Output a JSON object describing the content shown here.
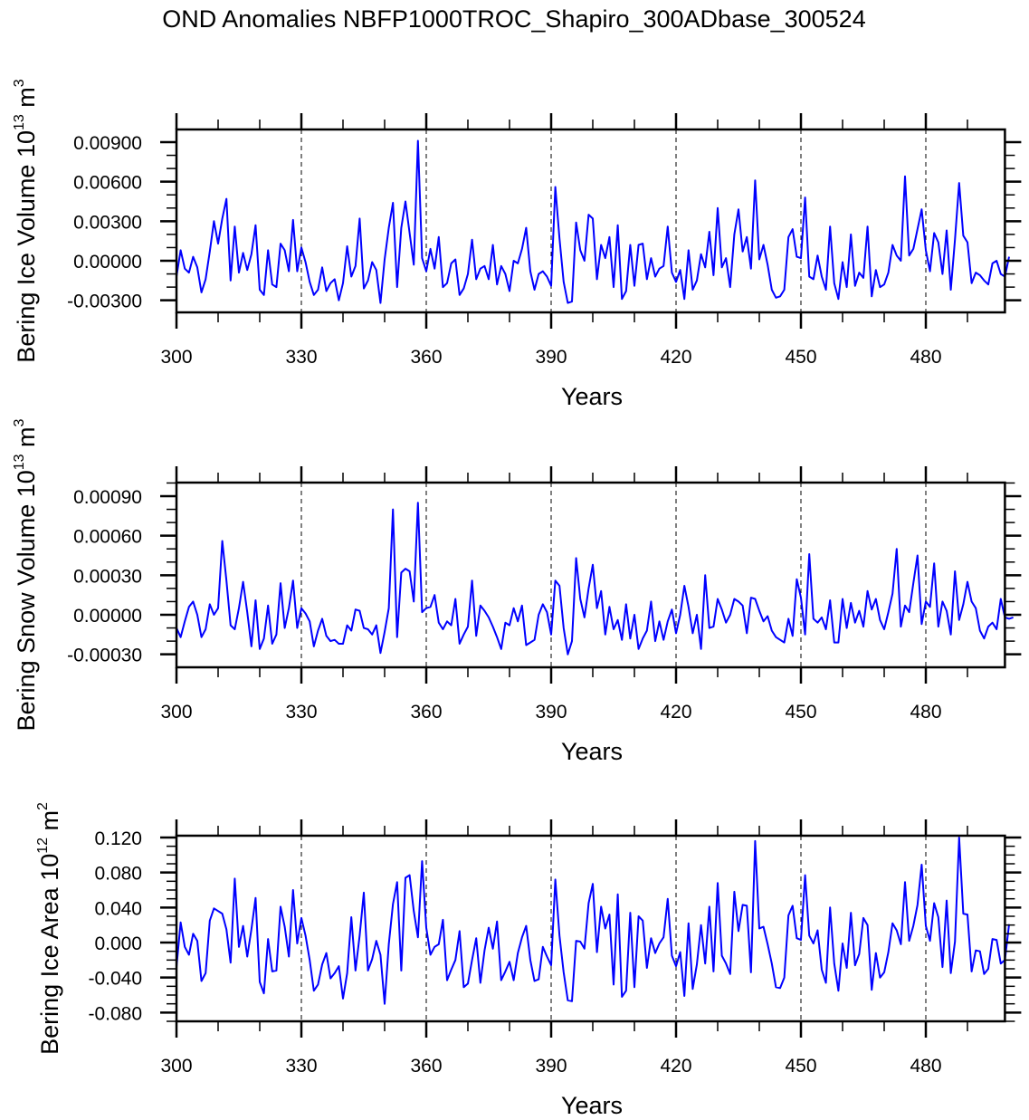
{
  "title": "OND Anomalies NBFP1000TROC_Shapiro_300ADbase_300524",
  "chart_data": [
    {
      "type": "line",
      "title": "",
      "xlabel": "Years",
      "ylabel": "Bering Ice Volume 10^13 m^3",
      "ylabel_main": "Bering Ice Volume 10",
      "ylabel_exp": "13",
      "ylabel_unit": " m",
      "ylabel_unit_exp": "3",
      "xlim": [
        300,
        499
      ],
      "ylim": [
        -0.0039,
        0.00996
      ],
      "xticks": [
        300,
        330,
        360,
        390,
        420,
        450,
        480
      ],
      "xtick_labels": [
        "300",
        "330",
        "360",
        "390",
        "420",
        "450",
        "480"
      ],
      "yticks": [
        -0.003,
        0.0,
        0.003,
        0.006,
        0.009
      ],
      "ytick_labels": [
        "-0.00300",
        "0.00000",
        "0.00300",
        "0.00600",
        "0.00900"
      ],
      "yminor_step": 0.001,
      "vlines": [
        330,
        360,
        390,
        420,
        450,
        480
      ],
      "line_color": "#0000ff",
      "x_start": 300,
      "values": [
        -0.0012,
        0.0008,
        -0.0006,
        -0.0009,
        0.0003,
        -0.0005,
        -0.0024,
        -0.0014,
        0.0007,
        0.003,
        0.0013,
        0.0032,
        0.0047,
        -0.0015,
        0.0026,
        -0.0009,
        0.0006,
        -0.0007,
        0.0005,
        0.0027,
        -0.0022,
        -0.0026,
        0.0008,
        -0.0018,
        -0.002,
        0.0013,
        0.0008,
        -0.0008,
        0.0031,
        -0.0008,
        0.001,
        -0.0001,
        -0.0016,
        -0.0026,
        -0.0022,
        -0.0005,
        -0.0023,
        -0.0017,
        -0.0014,
        -0.003,
        -0.0017,
        0.0011,
        -0.0012,
        -0.0004,
        0.0032,
        -0.0021,
        -0.0015,
        -0.0001,
        -0.0007,
        -0.0032,
        0.0001,
        0.0025,
        0.0044,
        -0.002,
        0.0025,
        0.0045,
        0.0021,
        -0.0003,
        0.0091,
        0.0002,
        -0.0008,
        0.0009,
        -0.0006,
        0.0018,
        -0.002,
        -0.0017,
        -0.0002,
        0.0001,
        -0.0026,
        -0.0021,
        -0.001,
        0.0016,
        -0.0014,
        -0.0006,
        -0.0004,
        -0.0014,
        0.0012,
        -0.0018,
        -0.0004,
        -0.001,
        -0.0023,
        0.0,
        -0.0002,
        0.0009,
        0.0025,
        -0.0008,
        -0.0022,
        -0.001,
        -0.0008,
        -0.0012,
        -0.0019,
        0.0056,
        0.0017,
        -0.0016,
        -0.0032,
        -0.0031,
        0.0029,
        0.0008,
        0.0,
        0.0035,
        0.0032,
        -0.0014,
        0.0012,
        0.0002,
        0.0018,
        -0.002,
        0.0027,
        -0.0029,
        -0.0023,
        0.0012,
        -0.0019,
        0.0012,
        0.0013,
        -0.0014,
        0.0002,
        -0.0012,
        -0.0006,
        -0.0004,
        0.0026,
        -0.0009,
        -0.0016,
        -0.0007,
        -0.0029,
        0.0008,
        -0.0022,
        -0.0015,
        0.0005,
        -0.0005,
        0.0022,
        -0.0011,
        0.004,
        -0.0005,
        0.0002,
        -0.002,
        0.002,
        0.0039,
        0.0007,
        0.0018,
        -0.0006,
        0.0061,
        0.0001,
        0.0012,
        -0.0003,
        -0.0022,
        -0.0028,
        -0.0027,
        -0.0022,
        0.0018,
        0.0024,
        0.0003,
        0.0002,
        0.0048,
        -0.0012,
        -0.0014,
        0.0004,
        -0.0012,
        -0.0022,
        0.0026,
        -0.0017,
        -0.0029,
        -0.0001,
        -0.002,
        0.002,
        -0.0019,
        -0.0009,
        -0.0013,
        0.0026,
        -0.0027,
        -0.0007,
        -0.002,
        -0.0018,
        -0.0009,
        0.0012,
        0.0004,
        0.0,
        0.0064,
        0.0004,
        0.0009,
        0.0024,
        0.0039,
        0.0008,
        -0.0008,
        0.0021,
        0.0014,
        -0.001,
        0.0023,
        -0.0022,
        0.0016,
        0.0059,
        0.0019,
        0.0014,
        -0.0017,
        -0.0009,
        -0.0011,
        -0.0015,
        -0.0018,
        -0.0002,
        0.0,
        -0.001,
        -0.0012,
        0.0003
      ]
    },
    {
      "type": "line",
      "title": "",
      "xlabel": "Years",
      "ylabel": "Bering Snow Volume 10^13 m^3",
      "ylabel_main": "Bering Snow Volume 10",
      "ylabel_exp": "13",
      "ylabel_unit": " m",
      "ylabel_unit_exp": "3",
      "xlim": [
        300,
        499
      ],
      "ylim": [
        -0.00039,
        0.001
      ],
      "xticks": [
        300,
        330,
        360,
        390,
        420,
        450,
        480
      ],
      "xtick_labels": [
        "300",
        "330",
        "360",
        "390",
        "420",
        "450",
        "480"
      ],
      "yticks": [
        -0.0003,
        0.0,
        0.0003,
        0.0006,
        0.0009
      ],
      "ytick_labels": [
        "-0.00030",
        "0.00000",
        "0.00030",
        "0.00060",
        "0.00090"
      ],
      "yminor_step": 0.0001,
      "vlines": [
        330,
        360,
        390,
        420,
        450,
        480
      ],
      "line_color": "#0000ff",
      "x_start": 300,
      "values": [
        -0.0001,
        -0.00017,
        -5e-05,
        6e-05,
        0.0001,
        0.0,
        -0.00017,
        -0.00011,
        8e-05,
        0.0,
        5e-05,
        0.00056,
        0.00026,
        -8e-05,
        -0.00011,
        5e-05,
        0.00025,
        2e-05,
        -0.00024,
        0.00011,
        -0.00026,
        -0.00018,
        7e-05,
        -0.00022,
        -0.00015,
        0.00024,
        -0.0001,
        5e-05,
        0.00026,
        -0.0001,
        5e-05,
        1e-05,
        -5e-05,
        -0.00024,
        -0.00012,
        -3e-05,
        -0.00016,
        -0.0002,
        -0.00019,
        -0.00022,
        -0.00022,
        -8e-05,
        -0.00012,
        4e-05,
        3e-05,
        -0.0001,
        -0.00011,
        -0.00015,
        -8e-05,
        -0.00029,
        -0.00013,
        5e-05,
        0.0008,
        -0.00017,
        0.00032,
        0.00035,
        0.00033,
        0.0001,
        0.00085,
        2e-05,
        5e-05,
        6e-05,
        0.00015,
        -6e-05,
        -0.00011,
        -5e-05,
        -8e-05,
        0.00012,
        -0.00022,
        -0.00015,
        -9e-05,
        0.00026,
        -0.00016,
        7e-05,
        3e-05,
        -2e-05,
        -9e-05,
        -0.00017,
        -0.00026,
        -6e-05,
        -8e-05,
        5e-05,
        -5e-05,
        7e-05,
        -0.00023,
        -0.00021,
        -0.00019,
        0.0,
        8e-05,
        2e-05,
        -0.00015,
        0.00026,
        0.00022,
        -0.0001,
        -0.0003,
        -0.0002,
        0.00043,
        0.00012,
        -2e-05,
        0.0002,
        0.00038,
        5e-05,
        0.00018,
        -0.00015,
        6e-05,
        -0.00011,
        -4e-05,
        -0.00019,
        8e-05,
        -0.00018,
        0.0,
        -0.00026,
        -0.00018,
        -0.00012,
        0.0001,
        -0.0002,
        -5e-05,
        -0.00019,
        -5e-05,
        4e-05,
        -0.00014,
        0.0,
        0.00022,
        6e-05,
        -0.00014,
        0.0,
        -0.00026,
        0.0003,
        -0.0001,
        -9e-05,
        0.00012,
        4e-05,
        -6e-05,
        0.0,
        0.00012,
        0.0001,
        7e-05,
        -0.00014,
        0.00013,
        0.00012,
        3e-05,
        -5e-05,
        -1e-05,
        -0.00012,
        -0.00017,
        -0.00019,
        -0.00021,
        -3e-05,
        -0.00016,
        0.00027,
        0.00013,
        -0.00015,
        0.00046,
        -3e-05,
        -6e-05,
        -2e-05,
        -0.00011,
        0.00011,
        -0.00021,
        -0.00021,
        0.00012,
        -0.0001,
        9e-05,
        -6e-05,
        3e-05,
        -9e-05,
        0.00018,
        4e-05,
        0.00012,
        -4e-05,
        -0.00011,
        2e-05,
        0.00016,
        0.0005,
        -9e-05,
        7e-05,
        2e-05,
        0.00024,
        0.00045,
        -7e-05,
        0.0001,
        6e-05,
        0.00039,
        -9e-05,
        0.0001,
        3e-05,
        -0.00015,
        0.00033,
        -4e-05,
        8e-05,
        0.00025,
        0.0001,
        5e-05,
        -0.00012,
        -0.00018,
        -9e-05,
        -6e-05,
        -0.00011,
        0.00012,
        -2e-05,
        -3e-05,
        -2e-05
      ]
    },
    {
      "type": "line",
      "title": "",
      "xlabel": "Years",
      "ylabel": "Bering Ice Area 10^12 m^2",
      "ylabel_main": "Bering Ice Area 10",
      "ylabel_exp": "12",
      "ylabel_unit": " m",
      "ylabel_unit_exp": "2",
      "xlim": [
        300,
        499
      ],
      "ylim": [
        -0.09,
        0.122
      ],
      "xticks": [
        300,
        330,
        360,
        390,
        420,
        450,
        480
      ],
      "xtick_labels": [
        "300",
        "330",
        "360",
        "390",
        "420",
        "450",
        "480"
      ],
      "yticks": [
        -0.08,
        -0.04,
        0.0,
        0.04,
        0.08,
        0.12
      ],
      "ytick_labels": [
        "-0.080",
        "0.000",
        "0.040",
        "0.080",
        "0.120"
      ],
      "ytick_labels_full": [
        "-0.080",
        "-0.040",
        "0.000",
        "0.040",
        "0.080",
        "0.120"
      ],
      "yminor_step": 0.01,
      "vlines": [
        330,
        360,
        390,
        420,
        450,
        480
      ],
      "line_color": "#0000ff",
      "x_start": 300,
      "values": [
        -0.028,
        0.023,
        -0.005,
        -0.014,
        0.01,
        0.002,
        -0.044,
        -0.035,
        0.025,
        0.039,
        0.036,
        0.033,
        0.015,
        -0.023,
        0.073,
        -0.005,
        0.019,
        -0.016,
        0.015,
        0.051,
        -0.045,
        -0.058,
        0.004,
        -0.033,
        -0.032,
        0.041,
        0.018,
        -0.016,
        0.06,
        -0.001,
        0.028,
        0.008,
        -0.02,
        -0.055,
        -0.048,
        -0.025,
        -0.012,
        -0.041,
        -0.035,
        -0.027,
        -0.064,
        -0.035,
        0.029,
        -0.032,
        0.008,
        0.057,
        -0.032,
        -0.019,
        0.002,
        -0.014,
        -0.07,
        -0.002,
        0.044,
        0.069,
        -0.032,
        0.074,
        0.077,
        0.036,
        0.006,
        0.093,
        0.017,
        -0.014,
        -0.005,
        -0.002,
        0.026,
        -0.043,
        -0.031,
        -0.02,
        0.013,
        -0.051,
        -0.047,
        -0.02,
        0.005,
        -0.046,
        -0.009,
        0.017,
        -0.007,
        0.024,
        -0.043,
        -0.033,
        -0.022,
        -0.043,
        -0.012,
        0.006,
        0.019,
        -0.02,
        -0.044,
        -0.042,
        -0.005,
        -0.016,
        -0.026,
        0.072,
        0.008,
        -0.034,
        -0.066,
        -0.067,
        0.002,
        0.001,
        -0.007,
        0.045,
        0.067,
        -0.011,
        0.041,
        0.016,
        0.032,
        -0.048,
        0.055,
        -0.062,
        -0.055,
        0.034,
        -0.051,
        0.03,
        0.025,
        -0.029,
        0.005,
        -0.012,
        -0.001,
        0.006,
        0.05,
        -0.015,
        -0.027,
        -0.011,
        -0.061,
        0.022,
        -0.053,
        -0.025,
        0.02,
        -0.024,
        0.041,
        -0.033,
        0.068,
        -0.015,
        -0.024,
        -0.036,
        0.058,
        0.013,
        0.043,
        0.042,
        -0.034,
        0.116,
        0.016,
        0.018,
        -0.002,
        -0.024,
        -0.051,
        -0.052,
        -0.04,
        0.031,
        0.042,
        0.005,
        0.003,
        0.077,
        0.008,
        -0.001,
        0.014,
        -0.031,
        -0.046,
        0.04,
        -0.024,
        -0.055,
        -0.001,
        -0.029,
        0.034,
        -0.026,
        -0.013,
        0.028,
        0.02,
        -0.054,
        -0.012,
        -0.04,
        -0.034,
        -0.011,
        0.022,
        0.014,
        -0.002,
        0.069,
        0.002,
        0.019,
        0.043,
        0.089,
        0.019,
        0.002,
        0.045,
        0.029,
        -0.028,
        0.048,
        -0.035,
        0.001,
        0.12,
        0.033,
        0.032,
        -0.033,
        -0.009,
        -0.01,
        -0.036,
        -0.03,
        0.004,
        0.003,
        -0.024,
        -0.02,
        0.021
      ]
    }
  ]
}
